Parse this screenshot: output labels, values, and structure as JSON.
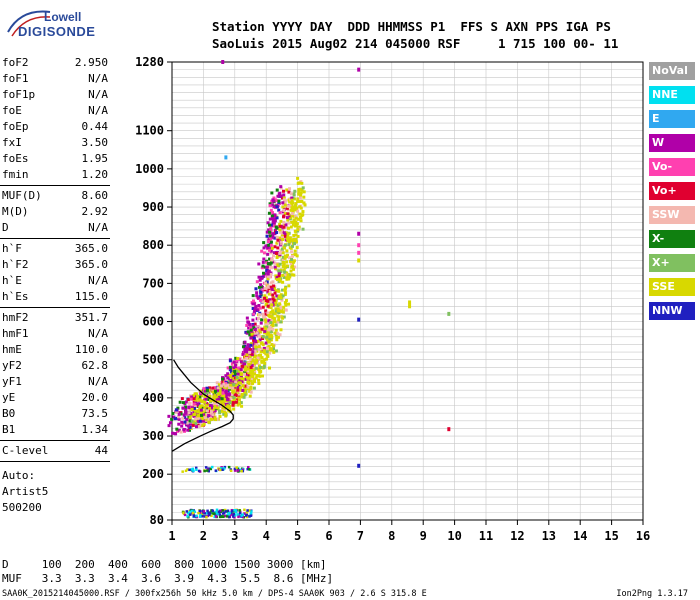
{
  "logo": {
    "line1": "Lowell",
    "line2": "DIGISONDE"
  },
  "header": {
    "line1": "Station YYYY DAY  DDD HHMMSS P1  FFS S AXN PPS IGA PS",
    "line2": "SaoLuis 2015 Aug02 214 045000 RSF     1 715 100 00- 11"
  },
  "params_group1": [
    {
      "k": "foF2",
      "v": "2.950"
    },
    {
      "k": "foF1",
      "v": "N/A"
    },
    {
      "k": "foF1p",
      "v": "N/A"
    },
    {
      "k": "foE",
      "v": "N/A"
    },
    {
      "k": "foEp",
      "v": "0.44"
    },
    {
      "k": "fxI",
      "v": "3.50"
    },
    {
      "k": "foEs",
      "v": "1.95"
    },
    {
      "k": "fmin",
      "v": "1.20"
    }
  ],
  "params_group2": [
    {
      "k": "MUF(D)",
      "v": "8.60"
    },
    {
      "k": "M(D)",
      "v": "2.92"
    },
    {
      "k": "D",
      "v": "N/A"
    }
  ],
  "params_group3": [
    {
      "k": "h`F",
      "v": "365.0"
    },
    {
      "k": "h`F2",
      "v": "365.0"
    },
    {
      "k": "h`E",
      "v": "N/A"
    },
    {
      "k": "h`Es",
      "v": "115.0"
    }
  ],
  "params_group4": [
    {
      "k": "hmF2",
      "v": "351.7"
    },
    {
      "k": "hmF1",
      "v": "N/A"
    },
    {
      "k": "hmE",
      "v": "110.0"
    },
    {
      "k": "yF2",
      "v": "62.8"
    },
    {
      "k": "yF1",
      "v": "N/A"
    },
    {
      "k": "yE",
      "v": "20.0"
    },
    {
      "k": "B0",
      "v": "73.5"
    },
    {
      "k": "B1",
      "v": "1.34"
    }
  ],
  "clevel": {
    "k": "C-level",
    "v": "44"
  },
  "auto": {
    "line1": "Auto:",
    "line2": "Artist5",
    "line3": "500200"
  },
  "legend": [
    {
      "label": "NoVal",
      "color": "#a0a0a0"
    },
    {
      "label": "NNE",
      "color": "#00e0f0"
    },
    {
      "label": "E",
      "color": "#30a8f0"
    },
    {
      "label": "W",
      "color": "#b000a8"
    },
    {
      "label": "Vo-",
      "color": "#ff40b0"
    },
    {
      "label": "Vo+",
      "color": "#e00030"
    },
    {
      "label": "SSW",
      "color": "#f4b8b0"
    },
    {
      "label": "X-",
      "color": "#108010"
    },
    {
      "label": "X+",
      "color": "#80c060"
    },
    {
      "label": "SSE",
      "color": "#d8d800"
    },
    {
      "label": "NNW",
      "color": "#2020c0"
    }
  ],
  "bottom": {
    "line1": "D     100  200  400  600  800 1000 1500 3000 [km]",
    "line2": "MUF   3.3  3.3  3.4  3.6  3.9  4.3  5.5  8.6 [MHz]"
  },
  "footer": "SAA0K_2015214045000.RSF / 300fx256h 50 kHz 5.0 km / DPS-4 SAA0K 903 / 2.6 S 315.8 E",
  "footer_right": "Ion2Png 1.3.17",
  "chart_data": {
    "type": "scatter",
    "xlim": [
      1,
      16
    ],
    "ylim": [
      80,
      1280
    ],
    "x_ticks": [
      "1",
      "2",
      "3",
      "4",
      "5",
      "6",
      "7",
      "8",
      "9",
      "10",
      "11",
      "12",
      "13",
      "14",
      "15",
      "16"
    ],
    "y_ticks": [
      {
        "v": 80,
        "label": "80"
      },
      {
        "v": 200,
        "label": "200"
      },
      {
        "v": 300,
        "label": "300"
      },
      {
        "v": 400,
        "label": "400"
      },
      {
        "v": 500,
        "label": "500"
      },
      {
        "v": 600,
        "label": "600"
      },
      {
        "v": 700,
        "label": "700"
      },
      {
        "v": 800,
        "label": "800"
      },
      {
        "v": 900,
        "label": "900"
      },
      {
        "v": 1000,
        "label": "1000"
      },
      {
        "v": 1100,
        "label": "1100"
      },
      {
        "v": 1280,
        "label": "1280"
      }
    ],
    "y_grid": [
      100,
      120,
      140,
      160,
      180,
      200,
      220,
      240,
      260,
      280,
      300,
      320,
      340,
      360,
      380,
      400,
      420,
      440,
      460,
      480,
      500,
      520,
      540,
      560,
      580,
      600,
      620,
      640,
      660,
      680,
      700,
      720,
      740,
      760,
      780,
      800,
      820,
      840,
      860,
      880,
      900,
      920,
      940,
      960,
      980,
      1000,
      1020,
      1040,
      1060,
      1080,
      1100,
      1120,
      1140,
      1160,
      1180,
      1200,
      1220,
      1240,
      1260
    ],
    "trace_band_center": [
      [
        1.3,
        360
      ],
      [
        1.8,
        372
      ],
      [
        2.2,
        385
      ],
      [
        2.6,
        405
      ],
      [
        2.9,
        430
      ],
      [
        3.2,
        460
      ],
      [
        3.5,
        500
      ],
      [
        3.8,
        560
      ],
      [
        4.0,
        620
      ],
      [
        4.2,
        700
      ],
      [
        4.4,
        790
      ],
      [
        4.6,
        880
      ],
      [
        4.7,
        940
      ]
    ],
    "profile": [
      [
        1.0,
        260
      ],
      [
        1.4,
        280
      ],
      [
        1.9,
        300
      ],
      [
        2.3,
        315
      ],
      [
        2.6,
        325
      ],
      [
        2.85,
        335
      ],
      [
        2.95,
        345
      ],
      [
        2.95,
        355
      ],
      [
        2.85,
        365
      ],
      [
        2.6,
        380
      ],
      [
        2.3,
        395
      ],
      [
        2.0,
        410
      ],
      [
        1.8,
        425
      ],
      [
        1.6,
        440
      ],
      [
        1.4,
        460
      ],
      [
        1.2,
        480
      ],
      [
        1.05,
        500
      ]
    ],
    "points": [
      {
        "x": 6.93,
        "y": 1260,
        "c": "#b000a8"
      },
      {
        "x": 6.93,
        "y": 830,
        "c": "#b000a8"
      },
      {
        "x": 6.93,
        "y": 800,
        "c": "#ff40b0"
      },
      {
        "x": 6.93,
        "y": 780,
        "c": "#ff40b0"
      },
      {
        "x": 6.93,
        "y": 760,
        "c": "#d8d800"
      },
      {
        "x": 6.93,
        "y": 605,
        "c": "#2020c0"
      },
      {
        "x": 8.55,
        "y": 650,
        "c": "#d8d800"
      },
      {
        "x": 8.55,
        "y": 640,
        "c": "#d8d800"
      },
      {
        "x": 9.8,
        "y": 620,
        "c": "#80c060"
      },
      {
        "x": 9.8,
        "y": 318,
        "c": "#e00030"
      },
      {
        "x": 6.93,
        "y": 222,
        "c": "#2020c0"
      },
      {
        "x": 2.6,
        "y": 1280,
        "c": "#b000a8"
      },
      {
        "x": 2.7,
        "y": 1030,
        "c": "#30a8f0"
      }
    ]
  }
}
